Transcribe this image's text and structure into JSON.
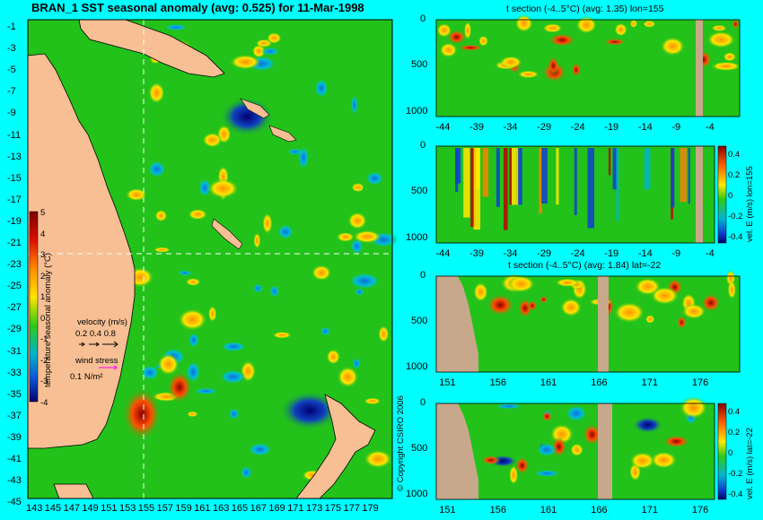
{
  "colors": {
    "background": "#00ffff",
    "land": "#f7bf93",
    "land_section": "#c8a88a",
    "ocean_base": "#22c21a",
    "dashed": "#ffffff"
  },
  "map": {
    "title": "BRAN_1 SST seasonal anomaly (avg: 0.525) for 11-Mar-1998",
    "lat_ticks": [
      "-1",
      "-3",
      "-5",
      "-7",
      "-9",
      "-11",
      "-13",
      "-15",
      "-17",
      "-19",
      "-21",
      "-23",
      "-25",
      "-27",
      "-29",
      "-31",
      "-33",
      "-35",
      "-37",
      "-39",
      "-41",
      "-43",
      "-45"
    ],
    "lon_ticks": [
      "143",
      "145",
      "147",
      "149",
      "151",
      "153",
      "155",
      "157",
      "159",
      "161",
      "163",
      "165",
      "167",
      "169",
      "171",
      "173",
      "175",
      "177",
      "179"
    ],
    "colorbar_label": "temperature seasonal anomaly (°C)",
    "colorbar_ticks": [
      "5",
      "4",
      "3",
      "2",
      "1",
      "0",
      "-1",
      "-2",
      "-3",
      "-4"
    ],
    "velocity_label": "velocity (m/s)",
    "velocity_scale": "0.2 0.4 0.8",
    "wind_label": "wind stress",
    "wind_scale": "0.1 N/m²",
    "copyright": "© Copyright CSIRO 2006"
  },
  "panels": {
    "p1": {
      "title": "t section (-4..5°C) (avg: 1.35) lon=155"
    },
    "p2": {
      "colorbar_label": "vel. E (m/s) lon=155",
      "cb_ticks": [
        "0.4",
        "0.2",
        "0",
        "-0.2",
        "-0.4"
      ]
    },
    "p3": {
      "title": "t section (-4..5°C) (avg: 1.84) lat=-22"
    },
    "p4": {
      "colorbar_label": "vel. E (m/s) lat=-22",
      "cb_ticks": [
        "0.4",
        "0.2",
        "0",
        "-0.2",
        "-0.4"
      ]
    }
  },
  "chart_data": [
    {
      "type": "heatmap",
      "title": "BRAN_1 SST seasonal anomaly (avg: 0.525) for 11-Mar-1998",
      "xlabel": "",
      "ylabel": "",
      "x_range": [
        143,
        180
      ],
      "y_range": [
        -45,
        0
      ],
      "x_ticks": [
        143,
        145,
        147,
        149,
        151,
        153,
        155,
        157,
        159,
        161,
        163,
        165,
        167,
        169,
        171,
        173,
        175,
        177,
        179
      ],
      "y_ticks": [
        -1,
        -3,
        -5,
        -7,
        -9,
        -11,
        -13,
        -15,
        -17,
        -19,
        -21,
        -23,
        -25,
        -27,
        -29,
        -31,
        -33,
        -35,
        -37,
        -39,
        -41,
        -43,
        -45
      ],
      "colorbar": {
        "label": "temperature seasonal anomaly (°C)",
        "range": [
          -4,
          5
        ]
      },
      "average": 0.525,
      "section_lines": {
        "lon": 155,
        "lat": -22
      }
    },
    {
      "type": "heatmap",
      "title": "t section (-4..5°C) (avg: 1.35) lon=155",
      "x_range": [
        -45,
        0
      ],
      "y_range": [
        1050,
        0
      ],
      "x_ticks": [
        -44,
        -39,
        -34,
        -29,
        -24,
        -19,
        -14,
        -9,
        -4
      ],
      "y_ticks": [
        0,
        500,
        1000
      ],
      "average": 1.35
    },
    {
      "type": "heatmap",
      "title": "",
      "x_range": [
        -45,
        0
      ],
      "y_range": [
        1050,
        0
      ],
      "x_ticks": [
        -44,
        -39,
        -34,
        -29,
        -24,
        -19,
        -14,
        -9,
        -4
      ],
      "y_ticks": [
        0,
        500,
        1000
      ],
      "colorbar": {
        "label": "vel. E (m/s) lon=155",
        "range": [
          -0.4,
          0.4
        ]
      }
    },
    {
      "type": "heatmap",
      "title": "t section (-4..5°C) (avg: 1.84) lat=-22",
      "x_range": [
        150,
        180
      ],
      "y_range": [
        1050,
        0
      ],
      "x_ticks": [
        151,
        156,
        161,
        166,
        171,
        176
      ],
      "y_ticks": [
        0,
        500,
        1000
      ],
      "average": 1.84
    },
    {
      "type": "heatmap",
      "title": "",
      "x_range": [
        150,
        180
      ],
      "y_range": [
        1050,
        0
      ],
      "x_ticks": [
        151,
        156,
        161,
        166,
        171,
        176
      ],
      "y_ticks": [
        0,
        500,
        1000
      ],
      "colorbar": {
        "label": "vel. E (m/s) lat=-22",
        "range": [
          -0.4,
          0.4
        ]
      }
    }
  ]
}
